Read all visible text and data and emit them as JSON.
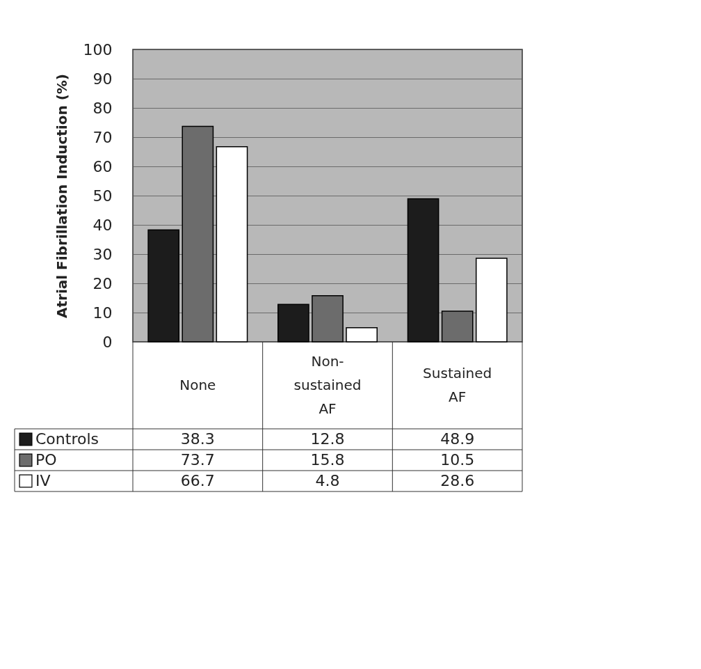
{
  "chart_data": {
    "type": "bar",
    "ylabel": "Atrial Fibrillation Induction (%)",
    "categories": [
      "None",
      "Non-sustained AF",
      "Sustained AF"
    ],
    "series": [
      {
        "name": "Controls",
        "color": "#1c1c1c",
        "values": [
          38.3,
          12.8,
          48.9
        ]
      },
      {
        "name": "PO",
        "color": "#6c6c6c",
        "values": [
          73.7,
          15.8,
          10.5
        ]
      },
      {
        "name": "IV",
        "color": "#ffffff",
        "values": [
          66.7,
          4.8,
          28.6
        ]
      }
    ],
    "ylim": [
      0,
      100
    ],
    "yticks": [
      0,
      10,
      20,
      30,
      40,
      50,
      60,
      70,
      80,
      90,
      100
    ],
    "grid": "y",
    "legend": "bottom",
    "data_labels": true
  }
}
